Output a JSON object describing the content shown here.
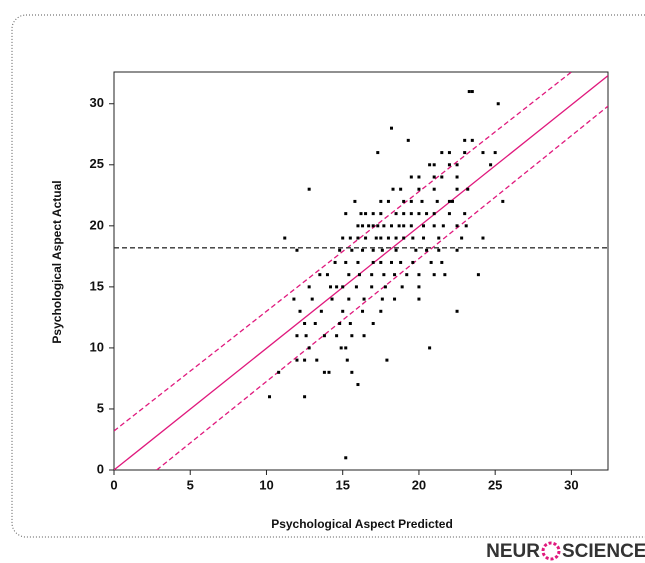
{
  "chart_data": {
    "type": "scatter",
    "x_label": "Psychological Aspect Predicted",
    "y_label": "Psychological Aspect Actual",
    "xlim": [
      0,
      32.4
    ],
    "ylim": [
      0,
      32.6
    ],
    "xticks": [
      0,
      5,
      10,
      15,
      20,
      25,
      30
    ],
    "yticks": [
      0,
      5,
      10,
      15,
      20,
      25,
      30
    ],
    "points": {
      "color": "#000000",
      "x": [
        23.3,
        23.5,
        25.2,
        18.2,
        19.3,
        23,
        23.5,
        17.3,
        21.5,
        22,
        23,
        24.2,
        25,
        20.7,
        21,
        22,
        22.5,
        24.7,
        19.5,
        20,
        21,
        21.5,
        22.5,
        12.8,
        18.3,
        18.8,
        20,
        21,
        22.5,
        23.2,
        15.8,
        17.5,
        18,
        19,
        19.5,
        20.2,
        21.2,
        22,
        22.2,
        25.5,
        15.2,
        16.2,
        16.5,
        17,
        17.5,
        18.5,
        19,
        19.5,
        20,
        20.5,
        21,
        22,
        23,
        16,
        16.3,
        16.7,
        17,
        17.3,
        17.7,
        18.2,
        18.7,
        19,
        19.5,
        20.3,
        21,
        21.6,
        22.5,
        23.1,
        11.2,
        15,
        15.5,
        16,
        16.5,
        17.2,
        17.5,
        18,
        18.5,
        19,
        19.6,
        20.3,
        21.3,
        22.8,
        24.2,
        12,
        14.8,
        15.6,
        16.3,
        17,
        17.6,
        18.5,
        19.8,
        20.5,
        21.3,
        22.5,
        14.5,
        15.2,
        16,
        17,
        17.5,
        18.2,
        18.8,
        19.6,
        20.8,
        21.5,
        13.5,
        14,
        15.4,
        16.1,
        16.9,
        17.7,
        18.4,
        19.2,
        20,
        21,
        21.7,
        23.9,
        12.8,
        14.2,
        14.6,
        15,
        15.9,
        16.9,
        17.8,
        18.9,
        20,
        11.8,
        13,
        14.3,
        15.4,
        16.4,
        17.6,
        18.4,
        20,
        12.2,
        13.6,
        15,
        16.3,
        17.5,
        22.5,
        12.5,
        13.2,
        14.8,
        15.5,
        17,
        12,
        12.6,
        13.8,
        14.6,
        15.6,
        16.4,
        12.8,
        14.9,
        15.2,
        20.7,
        12,
        12.5,
        13.3,
        15.3,
        17.9,
        10.8,
        13.8,
        14.1,
        15.6,
        16,
        10.2,
        12.5,
        15.2
      ],
      "values": [
        31,
        31,
        30,
        28,
        27,
        27,
        27,
        26,
        26,
        26,
        26,
        26,
        26,
        25,
        25,
        25,
        25,
        25,
        24,
        24,
        24,
        24,
        24,
        23,
        23,
        23,
        23,
        23,
        23,
        23,
        22,
        22,
        22,
        22,
        22,
        22,
        22,
        22,
        22,
        22,
        21,
        21,
        21,
        21,
        21,
        21,
        21,
        21,
        21,
        21,
        21,
        21,
        21,
        20,
        20,
        20,
        20,
        20,
        20,
        20,
        20,
        20,
        20,
        20,
        20,
        20,
        20,
        20,
        19,
        19,
        19,
        19,
        19,
        19,
        19,
        19,
        19,
        19,
        19,
        19,
        19,
        19,
        19,
        18,
        18,
        18,
        18,
        18,
        18,
        18,
        18,
        18,
        18,
        18,
        17,
        17,
        17,
        17,
        17,
        17,
        17,
        17,
        17,
        17,
        16,
        16,
        16,
        16,
        16,
        16,
        16,
        16,
        16,
        16,
        16,
        16,
        15,
        15,
        15,
        15,
        15,
        15,
        15,
        15,
        15,
        14,
        14,
        14,
        14,
        14,
        14,
        14,
        14,
        13,
        13,
        13,
        13,
        13,
        13,
        12,
        12,
        12,
        12,
        12,
        11,
        11,
        11,
        11,
        11,
        11,
        10,
        10,
        10,
        10,
        9,
        9,
        9,
        9,
        9,
        8,
        8,
        8,
        8,
        7,
        6,
        6,
        1
      ]
    },
    "lines": [
      {
        "color": "#e0197d",
        "dash": false,
        "x": [
          0,
          32.4
        ],
        "values": [
          0,
          32.3
        ]
      },
      {
        "color": "#e0197d",
        "dash": true,
        "x": [
          0,
          30
        ],
        "values": [
          3.2,
          32.6
        ]
      },
      {
        "color": "#e0197d",
        "dash": true,
        "x": [
          2.8,
          32.4
        ],
        "values": [
          0,
          29.8
        ]
      },
      {
        "color": "#333333",
        "dash": true,
        "x": [
          0,
          32.4
        ],
        "values": [
          18.2,
          18.2
        ]
      }
    ],
    "watermark": [
      "NEUR",
      "SCIENCE"
    ]
  }
}
